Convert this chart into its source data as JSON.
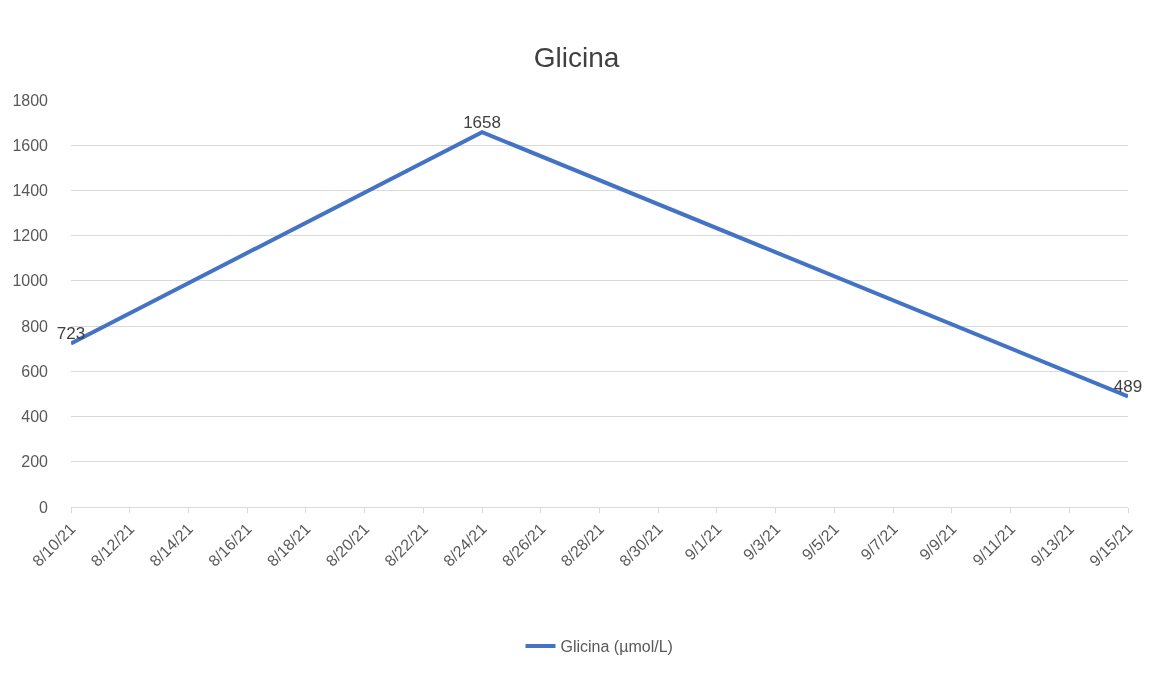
{
  "chart_data": {
    "type": "line",
    "title": "Glicina",
    "x": [
      "--08-10",
      "--08-24",
      "--09-15"
    ],
    "series": [
      {
        "name": "Glicina (µmol/L)",
        "color": "#4472c4",
        "values": [
          723,
          1658,
          489
        ]
      }
    ],
    "xlim": [
      "--08-10",
      "--09-15"
    ],
    "xticks": [
      {
        "value": "--08-10",
        "label": "8/10/21"
      },
      {
        "value": "--08-12",
        "label": "8/12/21"
      },
      {
        "value": "--08-14",
        "label": "8/14/21"
      },
      {
        "value": "--08-16",
        "label": "8/16/21"
      },
      {
        "value": "--08-18",
        "label": "8/18/21"
      },
      {
        "value": "--08-20",
        "label": "8/20/21"
      },
      {
        "value": "--08-22",
        "label": "8/22/21"
      },
      {
        "value": "--08-24",
        "label": "8/24/21"
      },
      {
        "value": "--08-26",
        "label": "8/26/21"
      },
      {
        "value": "--08-28",
        "label": "8/28/21"
      },
      {
        "value": "--08-30",
        "label": "8/30/21"
      },
      {
        "value": "--09-01",
        "label": "9/1/21"
      },
      {
        "value": "--09-03",
        "label": "9/3/21"
      },
      {
        "value": "--09-05",
        "label": "9/5/21"
      },
      {
        "value": "--09-07",
        "label": "9/7/21"
      },
      {
        "value": "--09-09",
        "label": "9/9/21"
      },
      {
        "value": "--09-11",
        "label": "9/11/21"
      },
      {
        "value": "--09-13",
        "label": "9/13/21"
      },
      {
        "value": "--09-15",
        "label": "9/15/21"
      }
    ],
    "ylim": [
      0,
      1800
    ],
    "yticks": [
      0,
      200,
      400,
      600,
      800,
      1000,
      1200,
      1400,
      1600,
      1800
    ],
    "grid": "y",
    "legend": "bottom",
    "data_labels": true,
    "marker": "none",
    "line_style": "solid"
  }
}
